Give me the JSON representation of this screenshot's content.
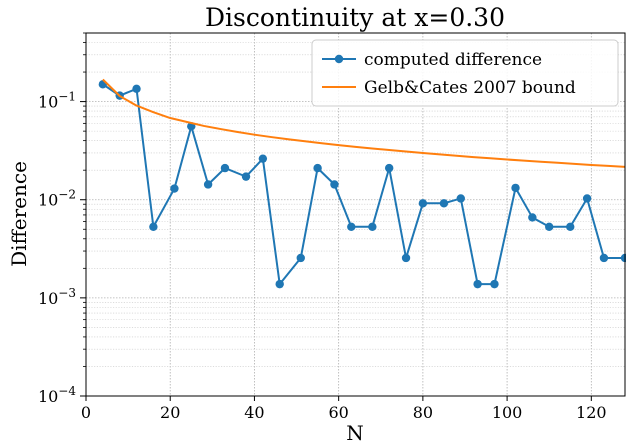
{
  "chart_data": {
    "type": "line",
    "title": "Discontinuity at x=0.30",
    "xlabel": "N",
    "ylabel": "Difference",
    "xlim": [
      0,
      128
    ],
    "ylim": [
      0.0001,
      0.5
    ],
    "yscale": "log",
    "grid": "major and minor, dotted",
    "legend_position": "top-right",
    "x_ticks": [
      {
        "value": 0,
        "label": "0"
      },
      {
        "value": 20,
        "label": "20"
      },
      {
        "value": 40,
        "label": "40"
      },
      {
        "value": 60,
        "label": "60"
      },
      {
        "value": 80,
        "label": "80"
      },
      {
        "value": 100,
        "label": "100"
      },
      {
        "value": 120,
        "label": "120"
      }
    ],
    "y_ticks": [
      {
        "value": 0.0001,
        "base": "10",
        "exp": "−4"
      },
      {
        "value": 0.001,
        "base": "10",
        "exp": "−3"
      },
      {
        "value": 0.01,
        "base": "10",
        "exp": "−2"
      },
      {
        "value": 0.1,
        "base": "10",
        "exp": "−1"
      }
    ],
    "series": [
      {
        "name": "computed difference",
        "color": "#1f77b4",
        "marker": "circle",
        "x": [
          4,
          8,
          12,
          16,
          21,
          25,
          29,
          33,
          38,
          42,
          46,
          51,
          55,
          59,
          63,
          68,
          72,
          76,
          80,
          85,
          89,
          93,
          97,
          102,
          106,
          110,
          115,
          119,
          123,
          128
        ],
        "y": [
          0.15,
          0.115,
          0.135,
          0.0053,
          0.013,
          0.056,
          0.0143,
          0.021,
          0.0172,
          0.0262,
          0.00138,
          0.00255,
          0.021,
          0.0143,
          0.0053,
          0.0053,
          0.021,
          0.00255,
          0.0092,
          0.0092,
          0.0103,
          0.00138,
          0.00138,
          0.0132,
          0.0066,
          0.0053,
          0.0053,
          0.0103,
          0.00255,
          0.00255
        ]
      },
      {
        "name": "Gelb&Cates 2007 bound",
        "color": "#ff7f0e",
        "marker": "none",
        "x": [
          4,
          8,
          12,
          16,
          20,
          24,
          28,
          32,
          36,
          40,
          44,
          48,
          52,
          56,
          60,
          64,
          68,
          72,
          76,
          80,
          84,
          88,
          92,
          96,
          100,
          104,
          108,
          112,
          116,
          120,
          124,
          128
        ],
        "y": [
          0.168,
          0.114,
          0.091,
          0.078,
          0.068,
          0.062,
          0.0565,
          0.0525,
          0.049,
          0.046,
          0.0435,
          0.0413,
          0.0394,
          0.0376,
          0.036,
          0.0346,
          0.0333,
          0.0321,
          0.031,
          0.0299,
          0.029,
          0.0281,
          0.0272,
          0.0265,
          0.0257,
          0.025,
          0.0244,
          0.0238,
          0.0232,
          0.0226,
          0.0221,
          0.0216
        ]
      }
    ]
  }
}
